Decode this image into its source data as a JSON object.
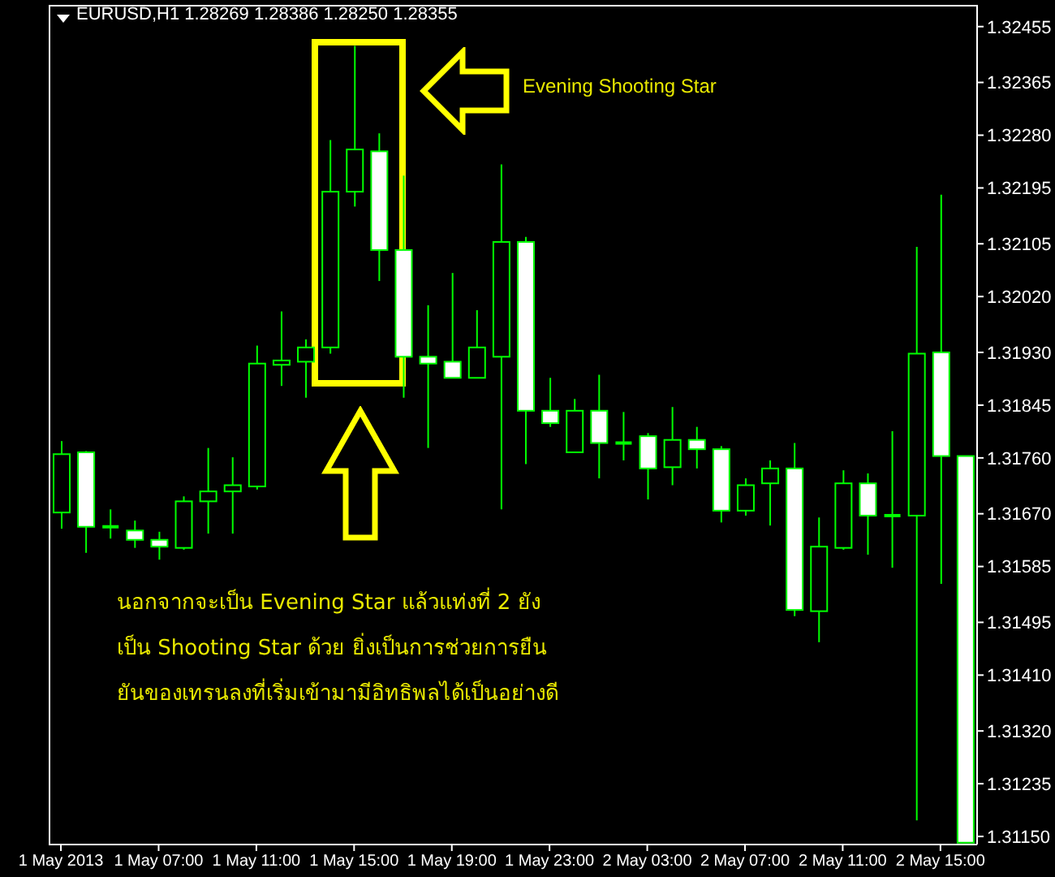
{
  "chart_data": {
    "type": "candlestick",
    "title": "EURUSD,H1 1.28269 1.28386 1.28250 1.28355",
    "color": "#00ff00",
    "categories": [
      "1 May 2013",
      null,
      null,
      null,
      "1 May 07:00",
      null,
      null,
      null,
      "1 May 11:00",
      null,
      null,
      null,
      "1 May 15:00",
      null,
      null,
      null,
      "1 May 19:00",
      null,
      null,
      null,
      "1 May 23:00",
      null,
      null,
      null,
      "2 May 03:00",
      null,
      null,
      null,
      "2 May 07:00",
      null,
      null,
      null,
      "2 May 11:00",
      null,
      null,
      null,
      "2 May 15:00",
      null
    ],
    "ohlc": [
      [
        1.31672,
        1.31787,
        1.31646,
        1.31766
      ],
      [
        1.31769,
        1.31771,
        1.31607,
        1.31649
      ],
      [
        1.31649,
        1.31677,
        1.3163,
        1.31649
      ],
      [
        1.31643,
        1.31659,
        1.31615,
        1.31628
      ],
      [
        1.31628,
        1.31641,
        1.31596,
        1.31617
      ],
      [
        1.31615,
        1.31698,
        1.31612,
        1.3169
      ],
      [
        1.3169,
        1.31776,
        1.31638,
        1.31706
      ],
      [
        1.31706,
        1.31761,
        1.31638,
        1.31716
      ],
      [
        1.31714,
        1.31941,
        1.31709,
        1.31912
      ],
      [
        1.3191,
        1.31996,
        1.31876,
        1.31917
      ],
      [
        1.31915,
        1.31951,
        1.31857,
        1.31938
      ],
      [
        1.31938,
        1.32272,
        1.31928,
        1.32189
      ],
      [
        1.32189,
        1.32424,
        1.32165,
        1.32257
      ],
      [
        1.32254,
        1.32283,
        1.32045,
        1.32095
      ],
      [
        1.32095,
        1.32215,
        1.31857,
        1.31923
      ],
      [
        1.31923,
        1.32006,
        1.31776,
        1.31912
      ],
      [
        1.31915,
        1.32058,
        1.31889,
        1.31889
      ],
      [
        1.31889,
        1.31998,
        1.31889,
        1.31938
      ],
      [
        1.31923,
        1.32233,
        1.31677,
        1.32108
      ],
      [
        1.32108,
        1.32116,
        1.3175,
        1.31836
      ],
      [
        1.31836,
        1.31889,
        1.3181,
        1.31816
      ],
      [
        1.31769,
        1.31855,
        1.31769,
        1.31836
      ],
      [
        1.31836,
        1.31894,
        1.31727,
        1.31784
      ],
      [
        1.31784,
        1.31834,
        1.31756,
        1.31784
      ],
      [
        1.31795,
        1.318,
        1.31693,
        1.31743
      ],
      [
        1.31745,
        1.31842,
        1.31716,
        1.31789
      ],
      [
        1.31789,
        1.3181,
        1.31743,
        1.31774
      ],
      [
        1.31774,
        1.31779,
        1.31656,
        1.31675
      ],
      [
        1.31675,
        1.31727,
        1.31667,
        1.31716
      ],
      [
        1.31719,
        1.31756,
        1.31651,
        1.31743
      ],
      [
        1.31743,
        1.31784,
        1.31505,
        1.31515
      ],
      [
        1.31513,
        1.31664,
        1.31463,
        1.31617
      ],
      [
        1.31615,
        1.3174,
        1.31612,
        1.31719
      ],
      [
        1.31719,
        1.31735,
        1.31604,
        1.31667
      ],
      [
        1.31667,
        1.31803,
        1.31583,
        1.31667
      ],
      [
        1.31667,
        1.321,
        1.31176,
        1.31928
      ],
      [
        1.3193,
        1.32184,
        1.31557,
        1.31763
      ],
      [
        1.31763,
        1.31763,
        1.3114,
        1.3114
      ]
    ],
    "ylim": [
      1.31137,
      1.3249
    ],
    "yticks": [
      {
        "value": 1.32455,
        "label": "1.32455"
      },
      {
        "value": 1.32365,
        "label": "1.32365"
      },
      {
        "value": 1.3228,
        "label": "1.32280"
      },
      {
        "value": 1.32195,
        "label": "1.32195"
      },
      {
        "value": 1.32105,
        "label": "1.32105"
      },
      {
        "value": 1.3202,
        "label": "1.32020"
      },
      {
        "value": 1.3193,
        "label": "1.31930"
      },
      {
        "value": 1.31845,
        "label": "1.31845"
      },
      {
        "value": 1.3176,
        "label": "1.31760"
      },
      {
        "value": 1.3167,
        "label": "1.31670"
      },
      {
        "value": 1.31585,
        "label": "1.31585"
      },
      {
        "value": 1.31495,
        "label": "1.31495"
      },
      {
        "value": 1.3141,
        "label": "1.31410"
      },
      {
        "value": 1.3132,
        "label": "1.31320"
      },
      {
        "value": 1.31235,
        "label": "1.31235"
      },
      {
        "value": 1.3115,
        "label": "1.31150"
      }
    ],
    "annotations": [
      "Evening Shooting Star",
      "นอกจากจะเป็น Evening Star แล้วแท่งที่ 2 ยัง",
      "เป็น Shooting Star ด้วย ยิ่งเป็นการช่วยการยืน",
      "ยันของเทรนลงที่เริ่มเข้ามามีอิทธิพลได้เป็นอย่างดี"
    ]
  }
}
